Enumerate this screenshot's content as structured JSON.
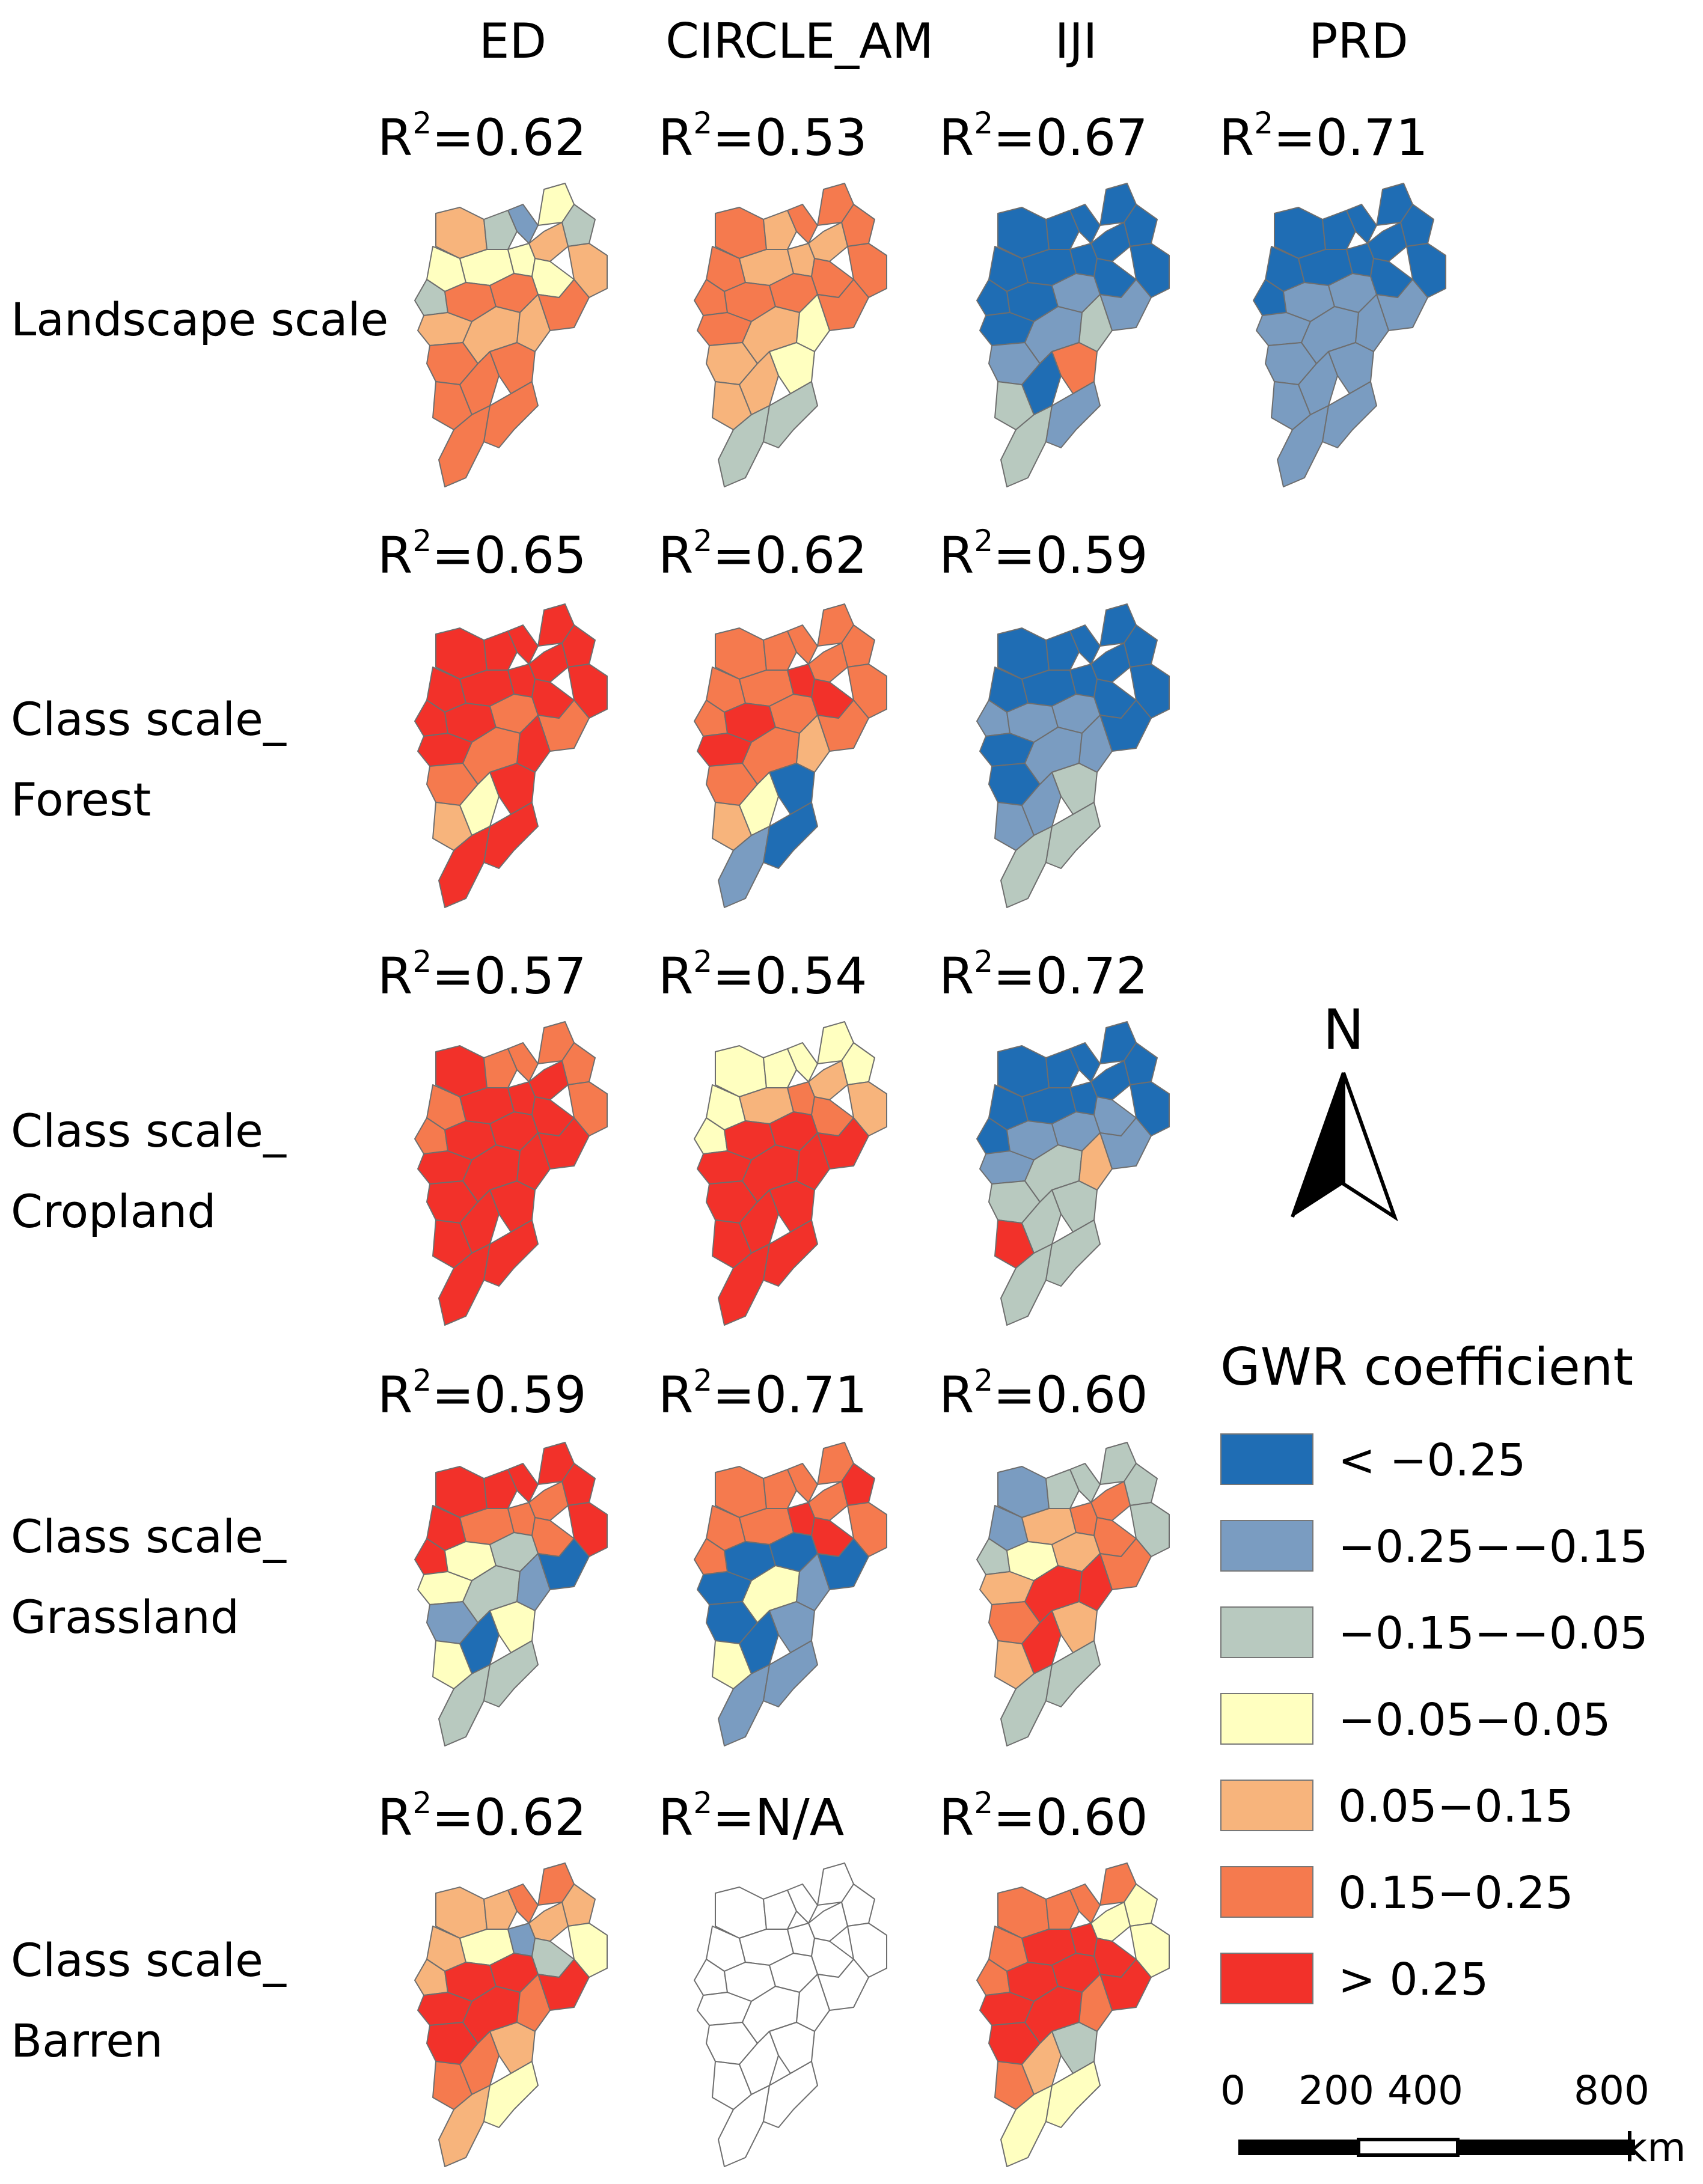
{
  "columns": [
    "ED",
    "CIRCLE_AM",
    "IJI",
    "PRD"
  ],
  "rows": [
    {
      "label_lines": [
        "Landscape scale"
      ],
      "r2": [
        "0.62",
        "0.53",
        "0.67",
        "0.71"
      ]
    },
    {
      "label_lines": [
        "Class scale_",
        "Forest"
      ],
      "r2": [
        "0.65",
        "0.62",
        "0.59"
      ]
    },
    {
      "label_lines": [
        "Class scale_",
        "Cropland"
      ],
      "r2": [
        "0.57",
        "0.54",
        "0.72"
      ]
    },
    {
      "label_lines": [
        "Class scale_",
        "Grassland"
      ],
      "r2": [
        "0.59",
        "0.71",
        "0.60"
      ]
    },
    {
      "label_lines": [
        "Class scale_",
        "Barren"
      ],
      "r2": [
        "0.62",
        "N/A",
        "0.60"
      ]
    }
  ],
  "r2_prefix": "R",
  "r2_sup": "2",
  "legend": {
    "title": "GWR coefficient",
    "classes": [
      {
        "label": "< −0.25",
        "color": "#1f6db4"
      },
      {
        "label": "−0.25−−0.15",
        "color": "#7a9cc1"
      },
      {
        "label": "−0.15−−0.05",
        "color": "#b8c9bf"
      },
      {
        "label": "−0.05−0.05",
        "color": "#ffffc0"
      },
      {
        "label": "0.05−0.15",
        "color": "#f7b47c"
      },
      {
        "label": "0.15−0.25",
        "color": "#f57a4e"
      },
      {
        "label": "> 0.25",
        "color": "#f2312a"
      }
    ],
    "no_data_color": "#ffffff"
  },
  "north_arrow": {
    "label": "N"
  },
  "scale_bar": {
    "ticks": [
      "0",
      "200",
      "400",
      "800"
    ],
    "unit": "km"
  },
  "maps": [
    [
      "543324355444566665566666",
      "666566665556666655455433",
      "111111111111112222331632",
      "111111111111222222222222"
    ],
    [
      "777777777777776666754777",
      "666666666677776666554121",
      "112111111111122112222333",
      "—"
    ],
    [
      "766666667777777777777777",
      "444444455566777777777777",
      "111111111112222233573333",
      "—"
    ],
    [
      "777777776666443123241433",
      "666666766677111114241222",
      "223333336566545667757533",
      "—"
    ],
    [
      "555566545423777777666554",
      "nnnnnnnnnnnnnnnnnnnnnnnn",
      "666666444777777777665344",
      "—"
    ]
  ]
}
